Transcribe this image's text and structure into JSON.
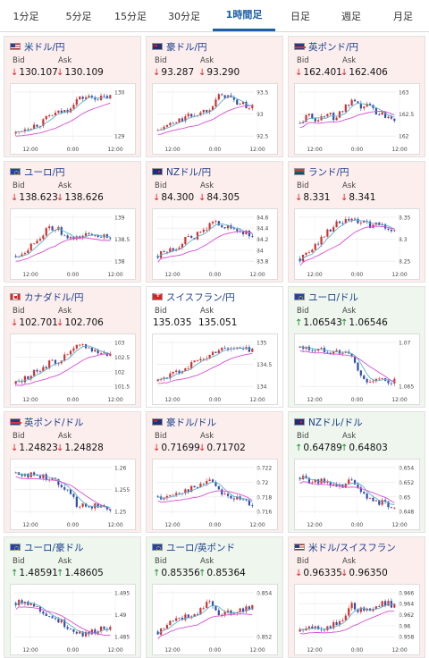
{
  "tabs": [
    {
      "label": "1分足"
    },
    {
      "label": "5分足"
    },
    {
      "label": "15分足"
    },
    {
      "label": "30分足"
    },
    {
      "label": "1時間足",
      "active": true
    },
    {
      "label": "日足"
    },
    {
      "label": "週足"
    },
    {
      "label": "月足"
    }
  ],
  "labels": {
    "bid": "Bid",
    "ask": "Ask"
  },
  "colors": {
    "down_bg": "#fdeeee",
    "up_bg": "#eef6ee",
    "candle_up": "#d32f2f",
    "candle_down": "#2e4fa8",
    "ma_short": "#5fb0c8",
    "ma_long": "#d64fd6"
  },
  "cards": [
    {
      "title": "米ドル/円",
      "flag": "us",
      "bid": "130.107",
      "ask": "130.109",
      "dir": "down",
      "bid_dir": "down",
      "ask_dir": "down",
      "chart": {
        "yticks": [
          "130",
          "129"
        ],
        "xticks": [
          "12:00",
          "0:00",
          "12:00"
        ],
        "trend": [
          0.15,
          0.25,
          0.3,
          0.35,
          0.5,
          0.55,
          0.6,
          0.8,
          0.85,
          0.85,
          0.83,
          0.86
        ]
      }
    },
    {
      "title": "豪ドル/円",
      "flag": "au",
      "bid": "93.287",
      "ask": "93.290",
      "dir": "down",
      "bid_dir": "down",
      "ask_dir": "down",
      "chart": {
        "yticks": [
          "93.5",
          "93",
          "92.5"
        ],
        "xticks": [
          "12:00",
          "0:00",
          "12:00"
        ],
        "trend": [
          0.2,
          0.3,
          0.35,
          0.45,
          0.5,
          0.55,
          0.65,
          0.85,
          0.9,
          0.75,
          0.7,
          0.65
        ]
      }
    },
    {
      "title": "英ポンド/円",
      "flag": "gb",
      "bid": "162.401",
      "ask": "162.406",
      "dir": "down",
      "bid_dir": "down",
      "ask_dir": "down",
      "chart": {
        "yticks": [
          "163",
          "162.5",
          "162"
        ],
        "xticks": [
          "12:00",
          "0:00",
          "12:00"
        ],
        "trend": [
          0.35,
          0.5,
          0.4,
          0.55,
          0.45,
          0.6,
          0.75,
          0.65,
          0.7,
          0.55,
          0.5,
          0.45
        ]
      }
    },
    {
      "title": "ユーロ/円",
      "flag": "eu",
      "bid": "138.623",
      "ask": "138.626",
      "dir": "down",
      "bid_dir": "down",
      "ask_dir": "down",
      "chart": {
        "yticks": [
          "139",
          "138.5",
          "138"
        ],
        "xticks": [
          "12:00",
          "0:00",
          "12:00"
        ],
        "trend": [
          0.2,
          0.3,
          0.45,
          0.6,
          0.75,
          0.7,
          0.5,
          0.55,
          0.6,
          0.62,
          0.6,
          0.58
        ]
      }
    },
    {
      "title": "NZドル/円",
      "flag": "nz",
      "bid": "84.300",
      "ask": "84.305",
      "dir": "down",
      "bid_dir": "down",
      "ask_dir": "down",
      "chart": {
        "yticks": [
          "84.6",
          "84.4",
          "84.2",
          "84",
          "83.8"
        ],
        "xticks": [
          "12:00",
          "0:00",
          "12:00"
        ],
        "trend": [
          0.2,
          0.3,
          0.35,
          0.5,
          0.55,
          0.65,
          0.8,
          0.85,
          0.75,
          0.7,
          0.65,
          0.6
        ]
      }
    },
    {
      "title": "ランド/円",
      "flag": "za",
      "bid": "8.331",
      "ask": "8.341",
      "dir": "down",
      "bid_dir": "down",
      "ask_dir": "down",
      "chart": {
        "yticks": [
          "8.35",
          "8.3",
          "8.25"
        ],
        "xticks": [
          "12:00",
          "0:00",
          "12:00"
        ],
        "trend": [
          0.15,
          0.25,
          0.45,
          0.65,
          0.8,
          0.85,
          0.9,
          0.85,
          0.8,
          0.8,
          0.75,
          0.7
        ]
      }
    },
    {
      "title": "カナダドル/円",
      "flag": "ca",
      "bid": "102.701",
      "ask": "102.706",
      "dir": "down",
      "bid_dir": "down",
      "ask_dir": "down",
      "chart": {
        "yticks": [
          "103",
          "102.5",
          "102",
          "101.5"
        ],
        "xticks": [
          "12:00",
          "0:00",
          "12:00"
        ],
        "trend": [
          0.15,
          0.25,
          0.35,
          0.45,
          0.55,
          0.6,
          0.7,
          0.85,
          0.9,
          0.8,
          0.75,
          0.72
        ]
      }
    },
    {
      "title": "スイスフラン/円",
      "flag": "ch",
      "bid": "135.035",
      "ask": "135.051",
      "dir": "flat",
      "bid_dir": "none",
      "ask_dir": "none",
      "chart": {
        "yticks": [
          "135",
          "134.5",
          "134"
        ],
        "xticks": [
          "12:00",
          "0:00",
          "12:00"
        ],
        "trend": [
          0.2,
          0.3,
          0.35,
          0.45,
          0.55,
          0.6,
          0.7,
          0.82,
          0.85,
          0.83,
          0.82,
          0.8
        ]
      }
    },
    {
      "title": "ユーロ/ドル",
      "flag": "eu",
      "bid": "1.06543",
      "ask": "1.06546",
      "dir": "up",
      "bid_dir": "up",
      "ask_dir": "up",
      "chart": {
        "yticks": [
          "1.07",
          "1.065"
        ],
        "xticks": [
          "12:00",
          "0:00",
          "12:00"
        ],
        "trend": [
          0.85,
          0.82,
          0.8,
          0.8,
          0.78,
          0.75,
          0.7,
          0.3,
          0.2,
          0.22,
          0.2,
          0.2
        ]
      }
    },
    {
      "title": "英ポンド/ドル",
      "flag": "gb",
      "bid": "1.24823",
      "ask": "1.24828",
      "dir": "down",
      "bid_dir": "down",
      "ask_dir": "down",
      "chart": {
        "yticks": [
          "1.26",
          "1.255",
          "1.25"
        ],
        "xticks": [
          "12:00",
          "0:00",
          "12:00"
        ],
        "trend": [
          0.85,
          0.82,
          0.8,
          0.78,
          0.75,
          0.65,
          0.55,
          0.25,
          0.2,
          0.22,
          0.2,
          0.18
        ]
      }
    },
    {
      "title": "豪ドル/ドル",
      "flag": "au",
      "bid": "0.71699",
      "ask": "0.71702",
      "dir": "down",
      "bid_dir": "down",
      "ask_dir": "down",
      "chart": {
        "yticks": [
          "0.722",
          "0.72",
          "0.718",
          "0.716"
        ],
        "xticks": [
          "12:00",
          "0:00",
          "12:00"
        ],
        "trend": [
          0.4,
          0.35,
          0.45,
          0.5,
          0.55,
          0.6,
          0.75,
          0.55,
          0.4,
          0.35,
          0.3,
          0.25
        ]
      }
    },
    {
      "title": "NZドル/ドル",
      "flag": "nz",
      "bid": "0.64789",
      "ask": "0.64803",
      "dir": "up",
      "bid_dir": "up",
      "ask_dir": "up",
      "chart": {
        "yticks": [
          "0.654",
          "0.652",
          "0.65",
          "0.648"
        ],
        "xticks": [
          "12:00",
          "0:00",
          "12:00"
        ],
        "trend": [
          0.75,
          0.7,
          0.65,
          0.7,
          0.6,
          0.55,
          0.75,
          0.45,
          0.35,
          0.3,
          0.25,
          0.2
        ]
      }
    },
    {
      "title": "ユーロ/豪ドル",
      "flag": "eu",
      "bid": "1.48591",
      "ask": "1.48605",
      "dir": "up",
      "bid_dir": "up",
      "ask_dir": "up",
      "chart": {
        "yticks": [
          "1.495",
          "1.49",
          "1.485"
        ],
        "xticks": [
          "12:00",
          "0:00",
          "12:00"
        ],
        "trend": [
          0.75,
          0.8,
          0.72,
          0.6,
          0.5,
          0.4,
          0.3,
          0.2,
          0.15,
          0.2,
          0.25,
          0.3
        ]
      }
    },
    {
      "title": "ユーロ/英ポンド",
      "flag": "eu",
      "bid": "0.85356",
      "ask": "0.85364",
      "dir": "up",
      "bid_dir": "up",
      "ask_dir": "up",
      "chart": {
        "yticks": [
          "0.854",
          "0.852"
        ],
        "xticks": [
          "12:00",
          "0:00",
          "12:00"
        ],
        "trend": [
          0.2,
          0.3,
          0.5,
          0.45,
          0.55,
          0.6,
          0.85,
          0.5,
          0.55,
          0.6,
          0.65,
          0.7
        ]
      }
    },
    {
      "title": "米ドル/スイスフラン",
      "flag": "us",
      "bid": "0.96335",
      "ask": "0.96350",
      "dir": "down",
      "bid_dir": "down",
      "ask_dir": "down",
      "chart": {
        "yticks": [
          "0.966",
          "0.964",
          "0.962",
          "0.96",
          "0.958"
        ],
        "xticks": [
          "12:00",
          "0:00",
          "12:00"
        ],
        "trend": [
          0.2,
          0.25,
          0.3,
          0.25,
          0.35,
          0.4,
          0.7,
          0.6,
          0.65,
          0.7,
          0.75,
          0.7
        ]
      }
    }
  ]
}
